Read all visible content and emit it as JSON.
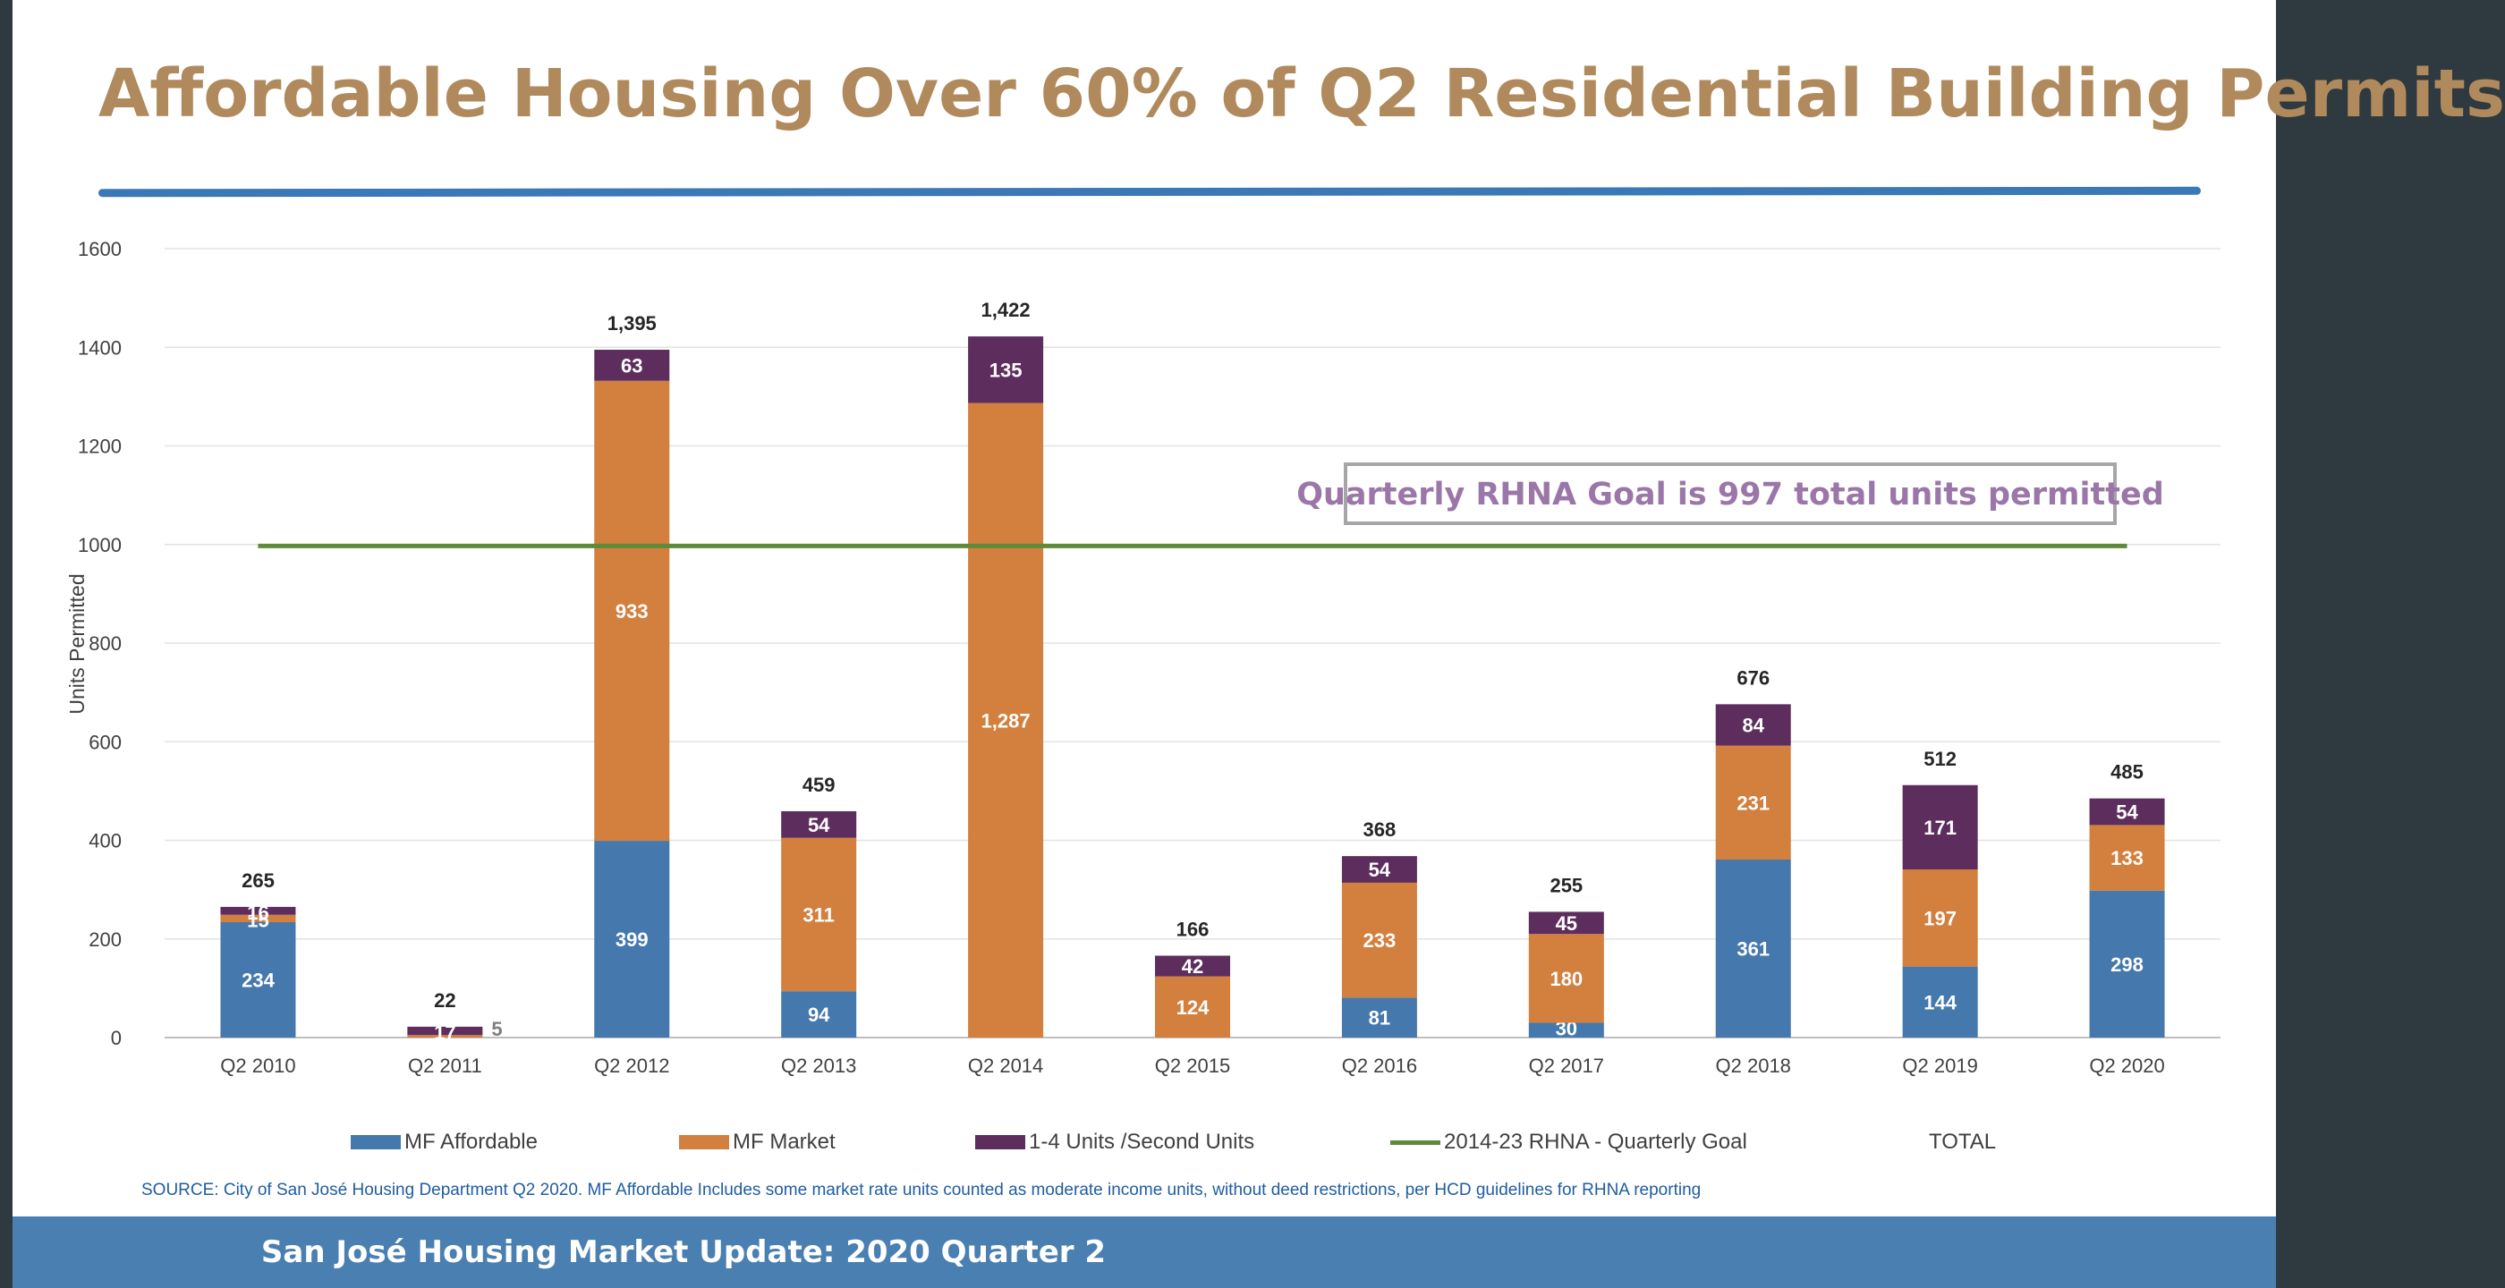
{
  "title": "Affordable Housing Over 60% of Q2 Residential Building Permits",
  "footer": "San José Housing Market Update: 2020 Quarter 2",
  "source_note": "SOURCE: City of San José Housing Department Q2 2020. MF Affordable Includes some market rate units counted as moderate income units, without deed restrictions, per HCD guidelines for RHNA reporting",
  "annotation": "Quarterly RHNA Goal is 997 total units permitted",
  "colors": {
    "mf_affordable": "#4578ad",
    "mf_market": "#d37f3e",
    "one_to_four": "#5d2e5d",
    "goal_line": "#5e8a3a"
  },
  "legend": [
    {
      "label": "MF Affordable",
      "kind": "box",
      "color": "#4578ad"
    },
    {
      "label": "MF Market",
      "kind": "box",
      "color": "#d37f3e"
    },
    {
      "label": "1-4 Units /Second Units",
      "kind": "box",
      "color": "#5d2e5d"
    },
    {
      "label": "2014-23 RHNA - Quarterly Goal",
      "kind": "line",
      "color": "#5e8a3a"
    },
    {
      "label": "TOTAL",
      "kind": "none",
      "color": ""
    }
  ],
  "chart_data": {
    "type": "bar",
    "stacked": true,
    "ylabel": "Units Permitted",
    "xlabel": "",
    "ylim": [
      0,
      1600
    ],
    "yticks": [
      0,
      200,
      400,
      600,
      800,
      1000,
      1200,
      1400,
      1600
    ],
    "grid": true,
    "legend_position": "bottom",
    "categories": [
      "Q2 2010",
      "Q2 2011",
      "Q2 2012",
      "Q2 2013",
      "Q2 2014",
      "Q2 2015",
      "Q2 2016",
      "Q2 2017",
      "Q2 2018",
      "Q2 2019",
      "Q2 2020"
    ],
    "series": [
      {
        "name": "MF Affordable",
        "values": [
          234,
          0,
          399,
          94,
          0,
          0,
          81,
          30,
          361,
          144,
          298
        ],
        "labels": [
          "234",
          "",
          "399",
          "94",
          "",
          "",
          "81",
          "30",
          "361",
          "144",
          "298"
        ]
      },
      {
        "name": "MF Market",
        "values": [
          15,
          5,
          933,
          311,
          1287,
          124,
          233,
          180,
          231,
          197,
          133
        ],
        "labels": [
          "15",
          "5",
          "933",
          "311",
          "1,287",
          "124",
          "233",
          "180",
          "231",
          "197",
          "133"
        ]
      },
      {
        "name": "1-4 Units /Second Units",
        "values": [
          16,
          17,
          63,
          54,
          135,
          42,
          54,
          45,
          84,
          171,
          54
        ],
        "labels": [
          "16",
          "17",
          "63",
          "54",
          "135",
          "42",
          "54",
          "45",
          "84",
          "171",
          "54"
        ]
      }
    ],
    "totals": [
      265,
      22,
      1395,
      459,
      1422,
      166,
      368,
      255,
      676,
      512,
      485
    ],
    "total_labels": [
      "265",
      "22",
      "1,395",
      "459",
      "1,422",
      "166",
      "368",
      "255",
      "676",
      "512",
      "485"
    ],
    "goal_line": {
      "name": "2014-23 RHNA - Quarterly Goal",
      "value": 997
    }
  }
}
